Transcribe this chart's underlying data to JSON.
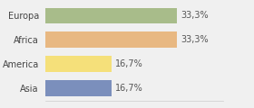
{
  "categories": [
    "Europa",
    "Africa",
    "America",
    "Asia"
  ],
  "values": [
    33.3,
    33.3,
    16.7,
    16.7
  ],
  "labels": [
    "33,3%",
    "33,3%",
    "16,7%",
    "16,7%"
  ],
  "bar_colors": [
    "#a8bc8a",
    "#e8b882",
    "#f5e07a",
    "#7b8fbc"
  ],
  "background_color": "#f0f0f0",
  "xlim": [
    0,
    45
  ],
  "label_fontsize": 7.0,
  "tick_fontsize": 7.0,
  "bar_height": 0.65
}
